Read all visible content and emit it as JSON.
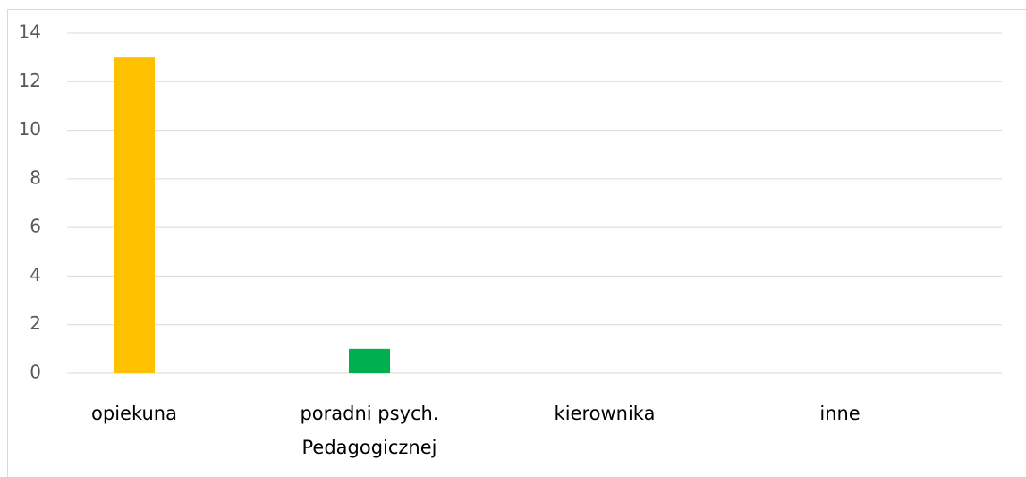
{
  "chart_data": {
    "type": "bar",
    "categories": [
      "opiekuna",
      "poradni psych. Pedagogicznej",
      "kierownika",
      "inne"
    ],
    "values": [
      13,
      1,
      0,
      0
    ],
    "colors": [
      "#ffc000",
      "#00b050",
      null,
      null
    ],
    "ylim": [
      0,
      14
    ],
    "yticks": [
      0,
      2,
      4,
      6,
      8,
      10,
      12,
      14
    ],
    "grid": true
  }
}
